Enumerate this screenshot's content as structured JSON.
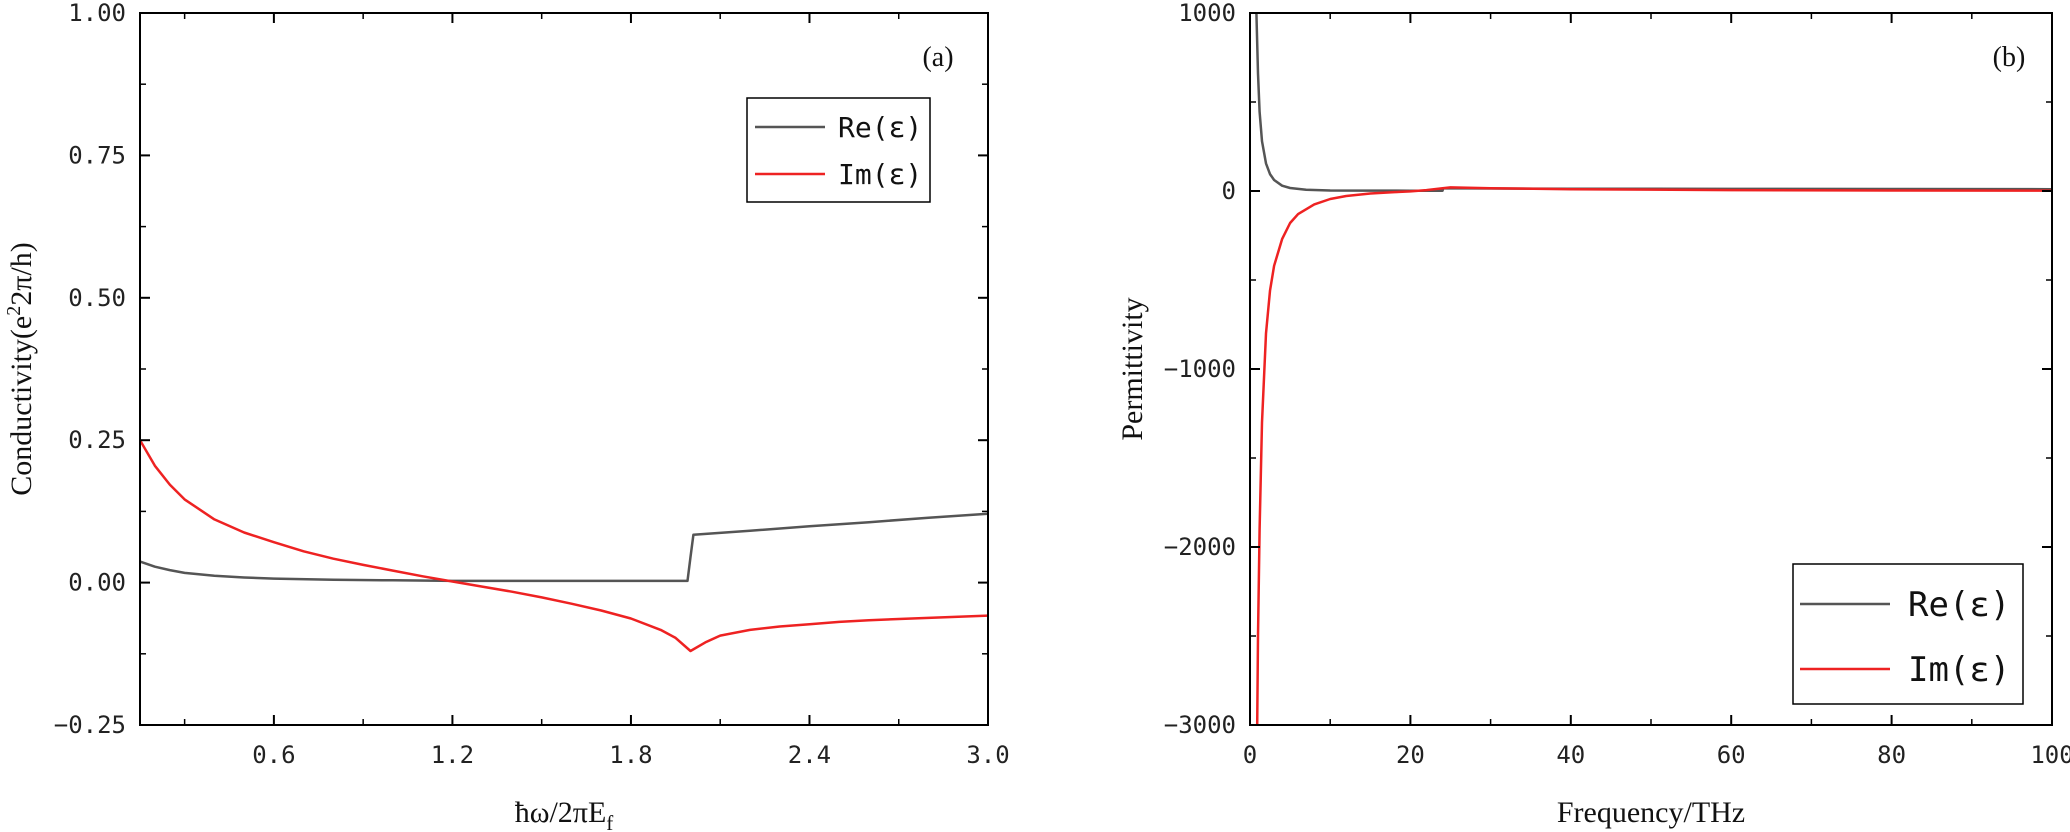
{
  "chart_data": [
    {
      "type": "line",
      "panel_label": "(a)",
      "xlabel": "ħω/2πE",
      "xlabel_sub": "f",
      "ylabel_a": "Conductivity(e",
      "ylabel_sup": "2",
      "ylabel_b": "2π/h)",
      "xlim": [
        0.15,
        3.0
      ],
      "ylim": [
        -0.25,
        1.0
      ],
      "x_ticks": [
        0.6,
        1.2,
        1.8,
        2.4,
        3.0
      ],
      "x_tick_labels": [
        "0.6",
        "1.2",
        "1.8",
        "2.4",
        "3.0"
      ],
      "y_ticks": [
        -0.25,
        0.0,
        0.25,
        0.5,
        0.75,
        1.0
      ],
      "y_tick_labels": [
        "−0.25",
        "0.00",
        "0.25",
        "0.50",
        "0.75",
        "1.00"
      ],
      "grid": false,
      "legend_position": "top-right",
      "series": [
        {
          "name": "Re(ε)",
          "color": "#555555",
          "x": [
            0.15,
            0.2,
            0.25,
            0.3,
            0.4,
            0.5,
            0.6,
            0.8,
            1.0,
            1.2,
            1.4,
            1.6,
            1.8,
            1.99,
            2.0,
            2.01,
            2.2,
            2.4,
            2.6,
            2.8,
            3.0
          ],
          "y": [
            0.037,
            0.028,
            0.022,
            0.017,
            0.012,
            0.009,
            0.007,
            0.005,
            0.004,
            0.003,
            0.003,
            0.003,
            0.003,
            0.003,
            0.045,
            0.084,
            0.091,
            0.099,
            0.106,
            0.114,
            0.121
          ]
        },
        {
          "name": "Im(ε)",
          "color": "#ee2222",
          "x": [
            0.15,
            0.2,
            0.25,
            0.3,
            0.4,
            0.5,
            0.6,
            0.7,
            0.8,
            0.9,
            1.0,
            1.1,
            1.2,
            1.3,
            1.4,
            1.5,
            1.6,
            1.7,
            1.8,
            1.9,
            1.95,
            2.0,
            2.05,
            2.1,
            2.2,
            2.3,
            2.4,
            2.5,
            2.6,
            2.8,
            3.0
          ],
          "y": [
            0.25,
            0.205,
            0.172,
            0.146,
            0.111,
            0.088,
            0.071,
            0.055,
            0.042,
            0.031,
            0.021,
            0.011,
            0.002,
            -0.007,
            -0.016,
            -0.026,
            -0.037,
            -0.049,
            -0.063,
            -0.083,
            -0.097,
            -0.12,
            -0.105,
            -0.093,
            -0.083,
            -0.077,
            -0.073,
            -0.069,
            -0.066,
            -0.062,
            -0.058
          ]
        }
      ]
    },
    {
      "type": "line",
      "panel_label": "(b)",
      "xlabel": "Frequency/THz",
      "ylabel": "Permittivity",
      "xlim": [
        0,
        100
      ],
      "ylim": [
        -3000,
        1000
      ],
      "x_ticks": [
        0,
        20,
        40,
        60,
        80,
        100
      ],
      "x_tick_labels": [
        "0",
        "20",
        "40",
        "60",
        "80",
        "100"
      ],
      "y_ticks": [
        -3000,
        -2000,
        -1000,
        0,
        1000
      ],
      "y_tick_labels": [
        "−3000",
        "−2000",
        "−1000",
        "0",
        "1000"
      ],
      "grid": false,
      "legend_position": "bottom-right",
      "series": [
        {
          "name": "Re(ε)",
          "color": "#555555",
          "x": [
            0.8,
            1.0,
            1.2,
            1.5,
            2.0,
            2.5,
            3.0,
            4.0,
            5.0,
            7.0,
            10.0,
            15.0,
            20.0,
            24.0,
            24.1,
            30.0,
            40.0,
            60.0,
            80.0,
            100.0
          ],
          "y": [
            1000,
            660,
            445,
            280,
            155,
            95,
            62,
            30,
            17,
            7,
            3,
            2,
            1.5,
            1,
            15,
            14,
            13,
            12,
            11,
            10
          ]
        },
        {
          "name": "Im(ε)",
          "color": "#ee2222",
          "x": [
            0.9,
            1.0,
            1.2,
            1.5,
            2.0,
            2.5,
            3.0,
            4.0,
            5.0,
            6.0,
            8.0,
            10.0,
            12.0,
            15.0,
            18.0,
            20.0,
            22.0,
            24.0,
            25.0,
            30.0,
            40.0,
            60.0,
            80.0,
            100.0
          ],
          "y": [
            -3000,
            -2500,
            -1900,
            -1300,
            -800,
            -560,
            -420,
            -270,
            -180,
            -130,
            -75,
            -45,
            -28,
            -14,
            -6,
            -2,
            5,
            15,
            20,
            15,
            10,
            5,
            3,
            2
          ]
        }
      ]
    }
  ]
}
